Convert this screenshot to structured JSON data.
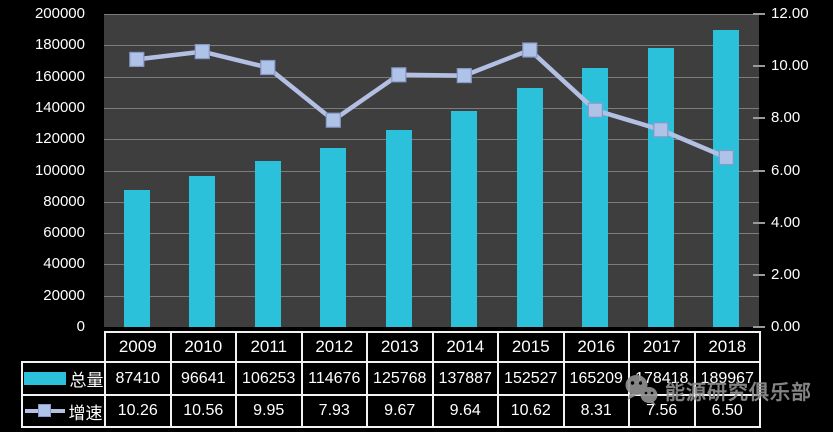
{
  "chart_data": {
    "type": "bar+line",
    "categories": [
      "2009",
      "2010",
      "2011",
      "2012",
      "2013",
      "2014",
      "2015",
      "2016",
      "2017",
      "2018"
    ],
    "series": [
      {
        "name": "总量",
        "type": "bar",
        "axis": "left",
        "color": "#2BC1DB",
        "values": [
          87410,
          96641,
          106253,
          114676,
          125768,
          137887,
          152527,
          165209,
          178418,
          189967
        ],
        "display_values": [
          "87410",
          "96641",
          "106253",
          "114676",
          "125768",
          "137887",
          "152527",
          "165209",
          "178418",
          "189967"
        ]
      },
      {
        "name": "增速",
        "type": "line",
        "axis": "right",
        "color": "#B3BFE3",
        "marker_color": "#AFC3E9",
        "marker_border": "#8799C6",
        "values": [
          10.26,
          10.56,
          9.95,
          7.93,
          9.67,
          9.64,
          10.62,
          8.31,
          7.56,
          6.5
        ],
        "display_values": [
          "10.26",
          "10.56",
          "9.95",
          "7.93",
          "9.67",
          "9.64",
          "10.62",
          "8.31",
          "7.56",
          "6.50"
        ]
      }
    ],
    "left_axis": {
      "min": 0,
      "max": 200000,
      "step": 20000,
      "labels": [
        "0",
        "20000",
        "40000",
        "60000",
        "80000",
        "100000",
        "120000",
        "140000",
        "160000",
        "180000",
        "200000"
      ]
    },
    "right_axis": {
      "min": 0,
      "max": 12,
      "step": 2,
      "labels": [
        "0.00",
        "2.00",
        "4.00",
        "6.00",
        "8.00",
        "10.00",
        "12.00"
      ]
    },
    "grid": true,
    "legend_position": "left column of data table",
    "colors": {
      "page_bg": "#000000",
      "plot_bg": "#3E3E3E",
      "gridline": "#7C7C7C",
      "axis_text": "#FFFFFF",
      "table_border": "#F2F2F2",
      "table_text": "#FFFFFF"
    }
  },
  "watermark": {
    "text": "能源研究俱乐部",
    "icon": "wechat-logo-icon",
    "color": "#8F8F8F"
  }
}
